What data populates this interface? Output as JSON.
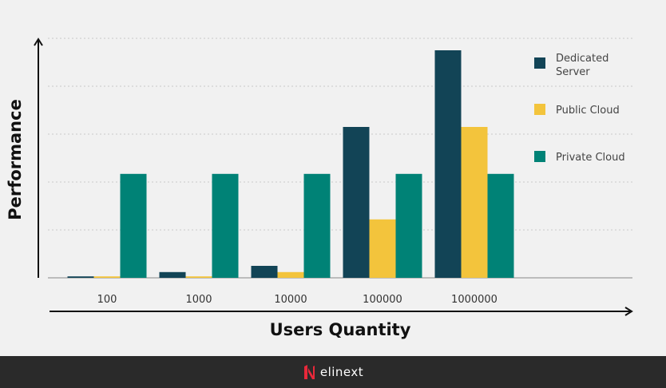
{
  "chart_data": {
    "type": "bar",
    "title": "",
    "xlabel": "Users Quantity",
    "ylabel": "Performance",
    "categories": [
      "100",
      "1000",
      "10000",
      "100000",
      "1000000"
    ],
    "series": [
      {
        "name": "Dedicated Server",
        "color": "#124456",
        "values": [
          0.03,
          0.12,
          0.25,
          3.15,
          4.75
        ]
      },
      {
        "name": "Public Cloud",
        "color": "#f3c43c",
        "values": [
          0.03,
          0.03,
          0.12,
          1.22,
          3.15
        ]
      },
      {
        "name": "Private Cloud",
        "color": "#008276",
        "values": [
          2.17,
          2.17,
          2.17,
          2.17,
          2.17
        ]
      }
    ],
    "ylim": [
      0,
      5
    ],
    "grid": true,
    "legend_position": "right"
  },
  "legend_lines": [
    [
      "Dedicated",
      "Server"
    ],
    [
      "Public Cloud"
    ],
    [
      "Private Cloud"
    ]
  ],
  "footer": {
    "brand": "elinext"
  }
}
